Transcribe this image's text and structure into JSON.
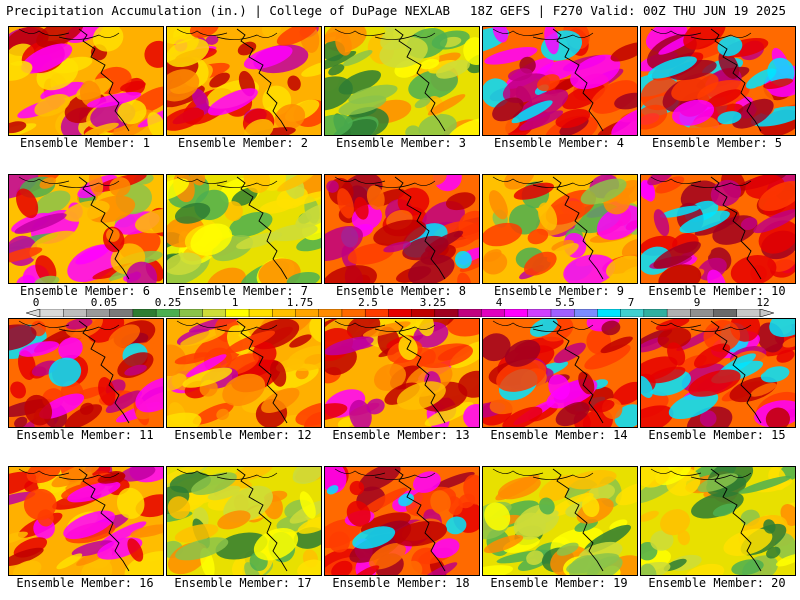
{
  "header": {
    "title": "Precipitation Accumulation (in.) | College of DuPage NEXLAB",
    "run_info": "18Z GEFS | F270 Valid: 00Z THU JUN 19 2025"
  },
  "colorbar": {
    "tick_labels": [
      "0",
      "0.05",
      "0.25",
      "1",
      "1.75",
      "2.5",
      "3.25",
      "4",
      "5.5",
      "7",
      "9",
      "12"
    ],
    "colors": [
      "#d9d9d9",
      "#bdbdbd",
      "#9a9a9a",
      "#7a7a7a",
      "#2e7d32",
      "#4caf50",
      "#8bc34a",
      "#cddc39",
      "#ffff00",
      "#ffe000",
      "#ffc000",
      "#ffa500",
      "#ff8c00",
      "#ff6a00",
      "#ff3c00",
      "#e60000",
      "#c00000",
      "#a00020",
      "#c00080",
      "#e000c0",
      "#ff00ff",
      "#d040ff",
      "#a060ff",
      "#7b8cff",
      "#00e5ff",
      "#40d0d0",
      "#30b0a0",
      "#b0b0b0",
      "#909090",
      "#6a6a6a",
      "#c8c8c8"
    ]
  },
  "members": [
    {
      "label": "Ensemble Member: 1",
      "dominant": "warm"
    },
    {
      "label": "Ensemble Member: 2",
      "dominant": "warm"
    },
    {
      "label": "Ensemble Member: 3",
      "dominant": "dry"
    },
    {
      "label": "Ensemble Member: 4",
      "dominant": "wet"
    },
    {
      "label": "Ensemble Member: 5",
      "dominant": "wet"
    },
    {
      "label": "Ensemble Member: 6",
      "dominant": "mixed"
    },
    {
      "label": "Ensemble Member: 7",
      "dominant": "dry"
    },
    {
      "label": "Ensemble Member: 8",
      "dominant": "wet"
    },
    {
      "label": "Ensemble Member: 9",
      "dominant": "mixed"
    },
    {
      "label": "Ensemble Member: 10",
      "dominant": "wet"
    },
    {
      "label": "Ensemble Member: 11",
      "dominant": "wet"
    },
    {
      "label": "Ensemble Member: 12",
      "dominant": "warm"
    },
    {
      "label": "Ensemble Member: 13",
      "dominant": "warm"
    },
    {
      "label": "Ensemble Member: 14",
      "dominant": "wet"
    },
    {
      "label": "Ensemble Member: 15",
      "dominant": "wet"
    },
    {
      "label": "Ensemble Member: 16",
      "dominant": "warm"
    },
    {
      "label": "Ensemble Member: 17",
      "dominant": "dry"
    },
    {
      "label": "Ensemble Member: 18",
      "dominant": "wet"
    },
    {
      "label": "Ensemble Member: 19",
      "dominant": "dry"
    },
    {
      "label": "Ensemble Member: 20",
      "dominant": "dry"
    }
  ]
}
